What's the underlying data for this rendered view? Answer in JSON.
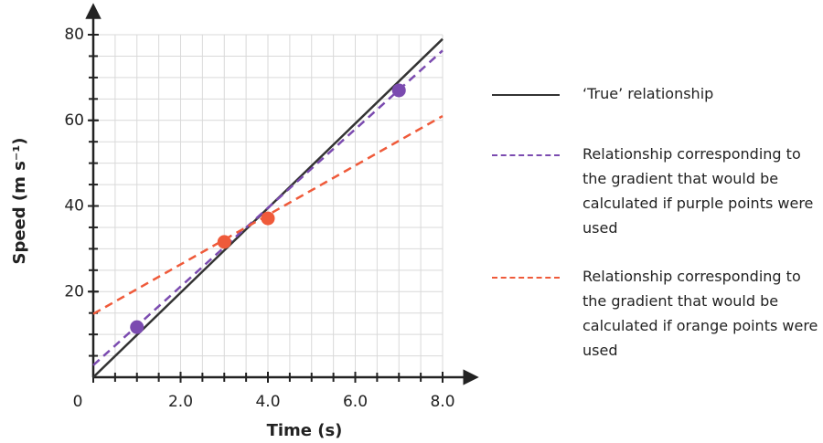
{
  "chart_data": {
    "type": "line",
    "xlabel": "Time (s)",
    "ylabel": "Speed (m s⁻¹)",
    "xlim": [
      0,
      8
    ],
    "ylim": [
      0,
      80
    ],
    "xticks": [
      {
        "value": 0,
        "label": "0"
      },
      {
        "value": 2,
        "label": "2.0"
      },
      {
        "value": 4,
        "label": "4.0"
      },
      {
        "value": 6,
        "label": "6.0"
      },
      {
        "value": 8,
        "label": "8.0"
      }
    ],
    "yticks": [
      20,
      40,
      60,
      80
    ],
    "xgrid": [
      0.5,
      1,
      1.5,
      2,
      2.5,
      3,
      3.5,
      4,
      4.5,
      5,
      5.5,
      6,
      6.5,
      7,
      7.5,
      8
    ],
    "ygrid": [
      5,
      10,
      15,
      20,
      25,
      30,
      35,
      40,
      45,
      50,
      55,
      60,
      65,
      70,
      75,
      80
    ],
    "grid": true,
    "series": [
      {
        "name": "‘True’ relationship",
        "color": "#333333",
        "dashed": false,
        "x": [
          0,
          8
        ],
        "values": [
          0,
          79
        ]
      },
      {
        "name": "Relationship corresponding to the gradient that would be calculated if purple points were used",
        "color": "#7b4bb0",
        "dashed": true,
        "x": [
          0,
          8
        ],
        "values": [
          2.8,
          76.3
        ]
      },
      {
        "name": "Relationship corresponding to the gradient that would be calculated if orange points were used",
        "color": "#ef5a3a",
        "dashed": true,
        "x": [
          0,
          8
        ],
        "values": [
          14.8,
          61
        ]
      }
    ],
    "markers": [
      {
        "color": "#7b4bb0",
        "x": [
          1,
          7
        ],
        "values": [
          11.7,
          67
        ]
      },
      {
        "color": "#ef5a3a",
        "x": [
          3,
          4
        ],
        "values": [
          31.6,
          37.1
        ]
      }
    ]
  }
}
